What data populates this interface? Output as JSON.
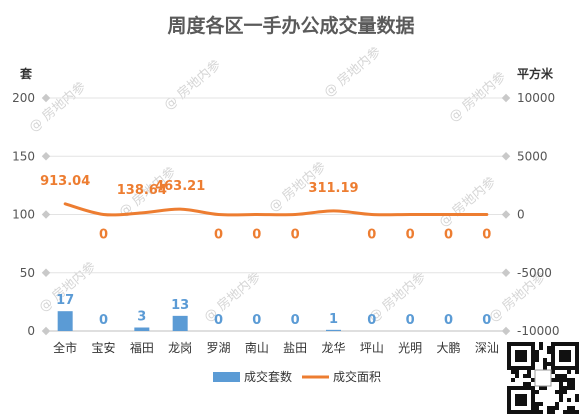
{
  "chart_data": {
    "type": "bar",
    "title": "周度各区一手办公成交量数据",
    "left_axis_unit": "套",
    "right_axis_unit": "平方米",
    "categories": [
      "全市",
      "宝安",
      "福田",
      "龙岗",
      "罗湖",
      "南山",
      "盐田",
      "龙华",
      "坪山",
      "光明",
      "大鹏",
      "深汕"
    ],
    "left_ticks": [
      "200",
      "150",
      "100",
      "50",
      "0"
    ],
    "right_ticks": [
      "10000",
      "5000",
      "0",
      "-5000",
      "-10000"
    ],
    "ylim_left": [
      0,
      200
    ],
    "ylim_right": [
      -10000,
      10000
    ],
    "grid": true,
    "legend_position": "bottom",
    "series": [
      {
        "name": "成交套数",
        "type": "bar",
        "axis": "left",
        "color": "#5b9bd5",
        "values": [
          17,
          0,
          3,
          13,
          0,
          0,
          0,
          1,
          0,
          0,
          0,
          0
        ],
        "labels": [
          "17",
          "0",
          "3",
          "13",
          "0",
          "0",
          "0",
          "1",
          "0",
          "0",
          "0",
          "0"
        ]
      },
      {
        "name": "成交面积",
        "type": "line",
        "axis": "right",
        "color": "#ed7d31",
        "values": [
          913.04,
          0,
          138.64,
          463.21,
          0,
          0,
          0,
          311.19,
          0,
          0,
          0,
          0
        ],
        "labels": [
          "913.04",
          "0",
          "138.64",
          "463.21",
          "0",
          "0",
          "0",
          "311.19",
          "0",
          "0",
          "0",
          "0"
        ]
      }
    ]
  },
  "watermark": {
    "text": "@ 房地内参"
  },
  "qr_code": {
    "icon": "qr-code-icon"
  }
}
